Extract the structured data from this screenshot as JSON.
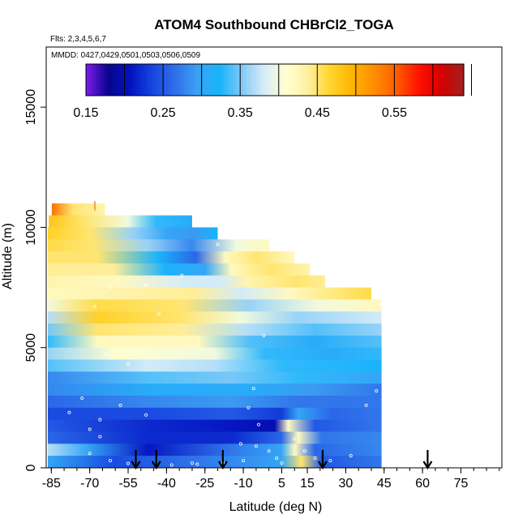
{
  "chart_data": {
    "type": "heatmap",
    "title": "ATOM4 Southbound CHBrCl2_TOGA",
    "subtitle": "Flts: 2,3,4,5,6,7",
    "annotation": "MMDD: 0427,0429,0501,0503,0506,0509",
    "xlabel": "Latitude (deg N)",
    "ylabel": "Altitude (m)",
    "xlim": [
      -87,
      91
    ],
    "ylim": [
      0,
      17500
    ],
    "x_ticks_minor": [
      -85,
      -80,
      -75,
      -70,
      -65,
      -60,
      -55,
      -50,
      -45,
      -40,
      -35,
      -30,
      -25,
      -20,
      -15,
      -10,
      -5,
      0,
      5,
      10,
      15,
      20,
      25,
      30,
      35,
      40,
      45,
      50,
      55,
      60,
      65,
      70,
      75,
      80,
      85,
      90
    ],
    "x_tick_labels": [
      -85,
      -70,
      -55,
      -40,
      -25,
      -10,
      5,
      15,
      30,
      45,
      60,
      75
    ],
    "y_tick_labels": [
      0,
      5000,
      10000,
      15000
    ],
    "colorbar": {
      "labels": [
        "0.15",
        "0.25",
        "0.35",
        "0.45",
        "0.55"
      ],
      "min": 0.15,
      "max": 0.64,
      "step": 0.025,
      "colors": [
        "#7f1cea",
        "#07058f",
        "#0313bf",
        "#1646e0",
        "#2f6ee8",
        "#3da1f4",
        "#16b4fc",
        "#7fc9f7",
        "#d5ecf8",
        "#ffffd1",
        "#fff09f",
        "#ffd42c",
        "#ffb300",
        "#ff8c00",
        "#ff5a00",
        "#ff1000",
        "#d30000",
        "#a32020"
      ]
    },
    "series": [
      {
        "name": "concentration",
        "rows": [
          {
            "alt": 10750,
            "x0": -84.8,
            "x1": -64,
            "stops": [
              [
                0,
                0.54
              ],
              [
                0.4,
                0.45
              ],
              [
                1,
                0.43
              ]
            ]
          },
          {
            "alt": 10250,
            "x0": -86,
            "x1": -30,
            "stops": [
              [
                0,
                0.48
              ],
              [
                0.25,
                0.45
              ],
              [
                0.55,
                0.4
              ],
              [
                0.75,
                0.33
              ],
              [
                1,
                0.31
              ]
            ]
          },
          {
            "alt": 9750,
            "x0": -87,
            "x1": -20,
            "stops": [
              [
                0,
                0.47
              ],
              [
                0.25,
                0.45
              ],
              [
                0.5,
                0.36
              ],
              [
                0.7,
                0.3
              ],
              [
                0.85,
                0.29
              ],
              [
                1,
                0.32
              ]
            ]
          },
          {
            "alt": 9250,
            "x0": -88,
            "x1": 0,
            "stops": [
              [
                0,
                0.46
              ],
              [
                0.2,
                0.45
              ],
              [
                0.45,
                0.36
              ],
              [
                0.65,
                0.28
              ],
              [
                0.85,
                0.4
              ],
              [
                1,
                0.42
              ]
            ]
          },
          {
            "alt": 8750,
            "x0": -89,
            "x1": 10,
            "stops": [
              [
                0,
                0.45
              ],
              [
                0.2,
                0.45
              ],
              [
                0.45,
                0.32
              ],
              [
                0.6,
                0.26
              ],
              [
                0.72,
                0.42
              ],
              [
                0.85,
                0.45
              ],
              [
                1,
                0.42
              ]
            ]
          },
          {
            "alt": 8250,
            "x0": -90,
            "x1": 16,
            "stops": [
              [
                0,
                0.44
              ],
              [
                0.25,
                0.44
              ],
              [
                0.45,
                0.32
              ],
              [
                0.6,
                0.3
              ],
              [
                0.7,
                0.42
              ],
              [
                0.85,
                0.45
              ],
              [
                1,
                0.43
              ]
            ]
          },
          {
            "alt": 7750,
            "x0": -91,
            "x1": 22,
            "stops": [
              [
                0,
                0.43
              ],
              [
                0.25,
                0.42
              ],
              [
                0.5,
                0.38
              ],
              [
                0.62,
                0.38
              ],
              [
                0.72,
                0.43
              ],
              [
                0.9,
                0.45
              ],
              [
                1,
                0.44
              ]
            ]
          },
          {
            "alt": 7250,
            "x0": -92,
            "x1": 40,
            "stops": [
              [
                0,
                0.42
              ],
              [
                0.2,
                0.43
              ],
              [
                0.45,
                0.44
              ],
              [
                0.6,
                0.38
              ],
              [
                0.75,
                0.42
              ],
              [
                1,
                0.46
              ]
            ]
          },
          {
            "alt": 6750,
            "x0": -93,
            "x1": 44,
            "stops": [
              [
                0,
                0.4
              ],
              [
                0.15,
                0.46
              ],
              [
                0.4,
                0.45
              ],
              [
                0.6,
                0.36
              ],
              [
                0.8,
                0.4
              ],
              [
                1,
                0.42
              ]
            ]
          },
          {
            "alt": 6250,
            "x0": -94,
            "x1": 44,
            "stops": [
              [
                0,
                0.37
              ],
              [
                0.15,
                0.47
              ],
              [
                0.4,
                0.45
              ],
              [
                0.58,
                0.4
              ],
              [
                0.75,
                0.36
              ],
              [
                1,
                0.38
              ]
            ]
          },
          {
            "alt": 5750,
            "x0": -95,
            "x1": 44,
            "stops": [
              [
                0,
                0.35
              ],
              [
                0.15,
                0.45
              ],
              [
                0.4,
                0.44
              ],
              [
                0.6,
                0.37
              ],
              [
                0.8,
                0.34
              ],
              [
                1,
                0.36
              ]
            ]
          },
          {
            "alt": 5250,
            "x0": -96,
            "x1": 44,
            "stops": [
              [
                0,
                0.33
              ],
              [
                0.15,
                0.42
              ],
              [
                0.45,
                0.42
              ],
              [
                0.6,
                0.34
              ],
              [
                0.8,
                0.31
              ],
              [
                1,
                0.34
              ]
            ]
          },
          {
            "alt": 4750,
            "x0": -97,
            "x1": 44,
            "stops": [
              [
                0,
                0.36
              ],
              [
                0.2,
                0.41
              ],
              [
                0.5,
                0.4
              ],
              [
                0.65,
                0.33
              ],
              [
                0.85,
                0.31
              ],
              [
                1,
                0.33
              ]
            ]
          },
          {
            "alt": 4250,
            "x0": -98,
            "x1": 44,
            "stops": [
              [
                0,
                0.34
              ],
              [
                0.3,
                0.38
              ],
              [
                0.5,
                0.37
              ],
              [
                0.7,
                0.33
              ],
              [
                1,
                0.32
              ]
            ]
          },
          {
            "alt": 3750,
            "x0": -99,
            "x1": 44,
            "stops": [
              [
                0,
                0.28
              ],
              [
                0.3,
                0.34
              ],
              [
                0.55,
                0.35
              ],
              [
                0.75,
                0.33
              ],
              [
                1,
                0.3
              ]
            ]
          },
          {
            "alt": 3250,
            "x0": -98,
            "x1": 44,
            "stops": [
              [
                0,
                0.28
              ],
              [
                0.3,
                0.31
              ],
              [
                0.6,
                0.31
              ],
              [
                0.8,
                0.29
              ],
              [
                1,
                0.27
              ]
            ]
          },
          {
            "alt": 2750,
            "x0": -97,
            "x1": 44,
            "stops": [
              [
                0,
                0.26
              ],
              [
                0.3,
                0.28
              ],
              [
                0.55,
                0.29
              ],
              [
                0.75,
                0.27
              ],
              [
                1,
                0.27
              ]
            ]
          },
          {
            "alt": 2250,
            "x0": -96,
            "x1": 44,
            "stops": [
              [
                0,
                0.24
              ],
              [
                0.3,
                0.24
              ],
              [
                0.55,
                0.25
              ],
              [
                0.7,
                0.23
              ],
              [
                0.75,
                0.3
              ],
              [
                0.85,
                0.26
              ],
              [
                1,
                0.27
              ]
            ]
          },
          {
            "alt": 1750,
            "x0": -95,
            "x1": 44,
            "stops": [
              [
                0,
                0.25
              ],
              [
                0.3,
                0.22
              ],
              [
                0.55,
                0.21
              ],
              [
                0.68,
                0.2
              ],
              [
                0.72,
                0.42
              ],
              [
                0.8,
                0.25
              ],
              [
                1,
                0.27
              ]
            ]
          },
          {
            "alt": 1250,
            "x0": -94,
            "x1": 44,
            "stops": [
              [
                0,
                0.26
              ],
              [
                0.3,
                0.22
              ],
              [
                0.55,
                0.22
              ],
              [
                0.7,
                0.26
              ],
              [
                0.75,
                0.42
              ],
              [
                0.82,
                0.27
              ],
              [
                1,
                0.28
              ]
            ]
          },
          {
            "alt": 750,
            "x0": -93,
            "x1": 44,
            "stops": [
              [
                0,
                0.37
              ],
              [
                0.12,
                0.3
              ],
              [
                0.3,
                0.21
              ],
              [
                0.55,
                0.27
              ],
              [
                0.7,
                0.3
              ],
              [
                0.74,
                0.42
              ],
              [
                0.8,
                0.26
              ],
              [
                1,
                0.28
              ]
            ]
          },
          {
            "alt": 250,
            "x0": -92,
            "x1": 44,
            "stops": [
              [
                0,
                0.3
              ],
              [
                0.2,
                0.24
              ],
              [
                0.45,
                0.27
              ],
              [
                0.7,
                0.3
              ],
              [
                0.76,
                0.45
              ],
              [
                0.82,
                0.25
              ],
              [
                1,
                0.27
              ]
            ]
          }
        ]
      }
    ],
    "arrows_latitude": [
      -52,
      -44,
      -18,
      21,
      62
    ],
    "sample_points": [
      [
        -78,
        2300
      ],
      [
        -70,
        1600
      ],
      [
        -66,
        2000
      ],
      [
        -64,
        4700
      ],
      [
        -68,
        6700
      ],
      [
        -62,
        7500
      ],
      [
        -55,
        4300
      ],
      [
        -48,
        7600
      ],
      [
        -43,
        6400
      ],
      [
        -34,
        8000
      ],
      [
        -20,
        9300
      ],
      [
        -14,
        10400
      ],
      [
        2,
        9100
      ],
      [
        -2,
        5500
      ],
      [
        -6,
        3300
      ],
      [
        -8,
        2500
      ],
      [
        -4,
        1800
      ],
      [
        -11,
        1000
      ],
      [
        -5,
        900
      ],
      [
        0,
        700
      ],
      [
        3,
        400
      ],
      [
        5,
        200
      ],
      [
        -18,
        200
      ],
      [
        -28,
        150
      ],
      [
        -38,
        120
      ],
      [
        -55,
        180
      ],
      [
        -62,
        300
      ],
      [
        -70,
        600
      ],
      [
        -66,
        1300
      ],
      [
        -73,
        2900
      ],
      [
        -58,
        2600
      ],
      [
        -48,
        2200
      ],
      [
        10,
        1200
      ],
      [
        14,
        700
      ],
      [
        18,
        400
      ],
      [
        24,
        300
      ],
      [
        32,
        500
      ],
      [
        38,
        2600
      ],
      [
        42,
        3200
      ],
      [
        44,
        6800
      ],
      [
        -30,
        200
      ],
      [
        -10,
        300
      ]
    ],
    "spike": {
      "x": -68,
      "y0": 10700,
      "y1": 11100
    }
  }
}
